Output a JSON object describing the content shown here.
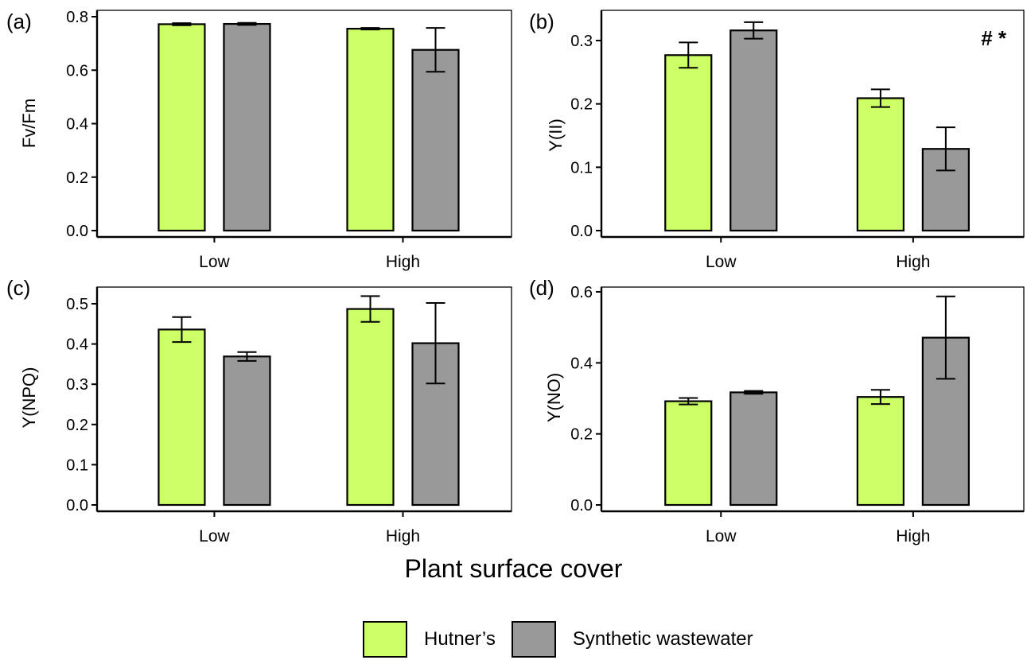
{
  "chart_data": [
    {
      "panel": "(a)",
      "type": "bar",
      "categories": [
        "Low",
        "High"
      ],
      "ylabel": "Fv/Fm",
      "ylim": [
        0,
        0.8
      ],
      "yticks": [
        "0.0",
        "0.2",
        "0.4",
        "0.6",
        "0.8"
      ],
      "ytick_values": [
        0,
        0.2,
        0.4,
        0.6,
        0.8
      ],
      "annotation": "",
      "series": [
        {
          "name": "Hutner’s",
          "values": [
            0.772,
            0.755
          ],
          "err": [
            0.004,
            0.003
          ]
        },
        {
          "name": "Synthetic wastewater",
          "values": [
            0.773,
            0.676
          ],
          "err": [
            0.004,
            0.082
          ]
        }
      ]
    },
    {
      "panel": "(b)",
      "type": "bar",
      "categories": [
        "Low",
        "High"
      ],
      "ylabel": "Y(II)",
      "ylim": [
        0,
        0.3
      ],
      "yticks": [
        "0.0",
        "0.1",
        "0.2",
        "0.3"
      ],
      "ytick_values": [
        0,
        0.1,
        0.2,
        0.3
      ],
      "annotation": "# *",
      "series": [
        {
          "name": "Hutner’s",
          "values": [
            0.277,
            0.209
          ],
          "err": [
            0.02,
            0.014
          ]
        },
        {
          "name": "Synthetic wastewater",
          "values": [
            0.316,
            0.129
          ],
          "err": [
            0.013,
            0.034
          ]
        }
      ]
    },
    {
      "panel": "(c)",
      "type": "bar",
      "categories": [
        "Low",
        "High"
      ],
      "ylabel": "Y(NPQ)",
      "ylim": [
        0,
        0.5
      ],
      "yticks": [
        "0.0",
        "0.1",
        "0.2",
        "0.3",
        "0.4",
        "0.5"
      ],
      "ytick_values": [
        0,
        0.1,
        0.2,
        0.3,
        0.4,
        0.5
      ],
      "annotation": "",
      "series": [
        {
          "name": "Hutner’s",
          "values": [
            0.436,
            0.487
          ],
          "err": [
            0.031,
            0.032
          ]
        },
        {
          "name": "Synthetic wastewater",
          "values": [
            0.369,
            0.402
          ],
          "err": [
            0.011,
            0.1
          ]
        }
      ]
    },
    {
      "panel": "(d)",
      "type": "bar",
      "categories": [
        "Low",
        "High"
      ],
      "ylabel": "Y(NO)",
      "ylim": [
        0,
        0.6
      ],
      "yticks": [
        "0.0",
        "0.2",
        "0.4",
        "0.6"
      ],
      "ytick_values": [
        0,
        0.2,
        0.4,
        0.6
      ],
      "annotation": "",
      "series": [
        {
          "name": "Hutner’s",
          "values": [
            0.292,
            0.304
          ],
          "err": [
            0.009,
            0.02
          ]
        },
        {
          "name": "Synthetic wastewater",
          "values": [
            0.317,
            0.471
          ],
          "err": [
            0.004,
            0.116
          ]
        }
      ]
    }
  ],
  "shared_xlabel": "Plant surface cover",
  "legend": [
    {
      "label": "Hutner’s",
      "color": "#ccff66"
    },
    {
      "label": "Synthetic wastewater",
      "color": "#999999"
    }
  ],
  "colors": {
    "hutners": "#ccff66",
    "synthetic": "#999999",
    "axis": "#000000"
  }
}
